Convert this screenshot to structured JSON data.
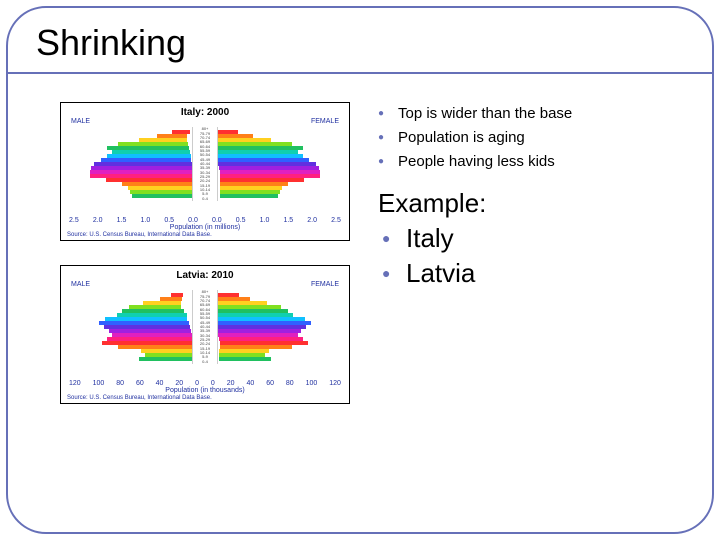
{
  "title": "Shrinking",
  "accent_color": "#6670b8",
  "small_bullets": [
    "Top is wider than the base",
    "Population is aging",
    "People having less kids"
  ],
  "example_heading": "Example:",
  "big_bullets": [
    "Italy",
    "Latvia"
  ],
  "charts": [
    {
      "title": "Italy: 2000",
      "male_label": "MALE",
      "female_label": "FEMALE",
      "axis_label": "Population (in millions)",
      "source": "Source: U.S. Census Bureau, International Data Base.",
      "ticks": [
        "2.5",
        "2.0",
        "1.5",
        "1.0",
        "0.5",
        "0.0",
        "0.0",
        "0.5",
        "1.0",
        "1.5",
        "2.0",
        "2.5"
      ],
      "age_labels": [
        "80+",
        "75-79",
        "70-74",
        "65-69",
        "60-64",
        "55-59",
        "50-54",
        "45-49",
        "40-44",
        "35-39",
        "30-34",
        "25-29",
        "20-24",
        "15-19",
        "10-14",
        "5-9",
        "0-4"
      ],
      "bars": [
        {
          "l": 18,
          "r": 22,
          "c": "#ff3030"
        },
        {
          "l": 30,
          "r": 40,
          "c": "#ff8018"
        },
        {
          "l": 48,
          "r": 58,
          "c": "#ffd020"
        },
        {
          "l": 70,
          "r": 78,
          "c": "#80e020"
        },
        {
          "l": 82,
          "r": 88,
          "c": "#20c060"
        },
        {
          "l": 78,
          "r": 82,
          "c": "#10d0b0"
        },
        {
          "l": 84,
          "r": 86,
          "c": "#10c0ff"
        },
        {
          "l": 90,
          "r": 92,
          "c": "#3060ff"
        },
        {
          "l": 98,
          "r": 98,
          "c": "#6030e0"
        },
        {
          "l": 102,
          "r": 100,
          "c": "#a020e0"
        },
        {
          "l": 104,
          "r": 100,
          "c": "#e020c0"
        },
        {
          "l": 104,
          "r": 100,
          "c": "#ff2080"
        },
        {
          "l": 88,
          "r": 84,
          "c": "#ff3030"
        },
        {
          "l": 72,
          "r": 68,
          "c": "#ff8018"
        },
        {
          "l": 66,
          "r": 62,
          "c": "#ffd020"
        },
        {
          "l": 64,
          "r": 60,
          "c": "#80e020"
        },
        {
          "l": 62,
          "r": 58,
          "c": "#20c060"
        }
      ]
    },
    {
      "title": "Latvia: 2010",
      "male_label": "MALE",
      "female_label": "FEMALE",
      "axis_label": "Population (in thousands)",
      "source": "Source: U.S. Census Bureau, International Data Base.",
      "ticks": [
        "120",
        "100",
        "80",
        "60",
        "40",
        "20",
        "0",
        "0",
        "20",
        "40",
        "60",
        "80",
        "100",
        "120"
      ],
      "age_labels": [
        "80+",
        "75-79",
        "70-74",
        "65-69",
        "60-64",
        "55-59",
        "50-54",
        "45-49",
        "40-44",
        "35-39",
        "30-34",
        "25-29",
        "20-24",
        "15-19",
        "10-14",
        "5-9",
        "0-4"
      ],
      "bars": [
        {
          "l": 12,
          "r": 30,
          "c": "#ff3030"
        },
        {
          "l": 22,
          "r": 42,
          "c": "#ff8018"
        },
        {
          "l": 38,
          "r": 60,
          "c": "#ffd020"
        },
        {
          "l": 52,
          "r": 74,
          "c": "#80e020"
        },
        {
          "l": 62,
          "r": 78,
          "c": "#20c060"
        },
        {
          "l": 70,
          "r": 80,
          "c": "#10d0b0"
        },
        {
          "l": 82,
          "r": 92,
          "c": "#10c0ff"
        },
        {
          "l": 90,
          "r": 96,
          "c": "#3060ff"
        },
        {
          "l": 86,
          "r": 90,
          "c": "#6030e0"
        },
        {
          "l": 82,
          "r": 84,
          "c": "#a020e0"
        },
        {
          "l": 80,
          "r": 80,
          "c": "#e020c0"
        },
        {
          "l": 86,
          "r": 84,
          "c": "#ff2080"
        },
        {
          "l": 92,
          "r": 88,
          "c": "#ff3030"
        },
        {
          "l": 76,
          "r": 72,
          "c": "#ff8018"
        },
        {
          "l": 52,
          "r": 50,
          "c": "#ffd020"
        },
        {
          "l": 48,
          "r": 46,
          "c": "#80e020"
        },
        {
          "l": 54,
          "r": 52,
          "c": "#20c060"
        }
      ]
    }
  ]
}
